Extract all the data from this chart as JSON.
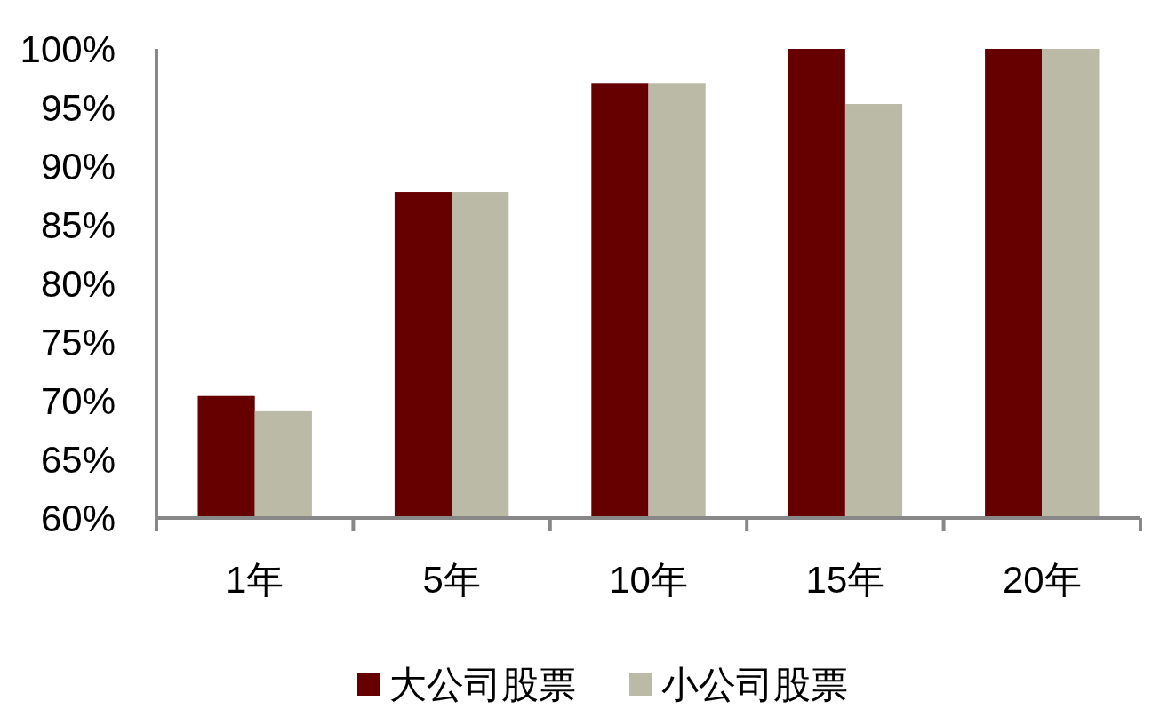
{
  "chart_data": {
    "type": "bar",
    "categories": [
      "1年",
      "5年",
      "10年",
      "15年",
      "20年"
    ],
    "series": [
      {
        "name": "大公司股票",
        "color": "#660000",
        "values": [
          70.4,
          87.8,
          97.1,
          100,
          100
        ]
      },
      {
        "name": "小公司股票",
        "color": "#bbbaa7",
        "values": [
          69.1,
          87.8,
          97.1,
          95.3,
          100
        ]
      }
    ],
    "ylim": [
      60,
      100
    ],
    "yticks": [
      {
        "value": 60,
        "label": "60%"
      },
      {
        "value": 65,
        "label": "65%"
      },
      {
        "value": 70,
        "label": "70%"
      },
      {
        "value": 75,
        "label": "75%"
      },
      {
        "value": 80,
        "label": "80%"
      },
      {
        "value": 85,
        "label": "85%"
      },
      {
        "value": 90,
        "label": "90%"
      },
      {
        "value": 95,
        "label": "95%"
      },
      {
        "value": 100,
        "label": "100%"
      }
    ],
    "grid": false,
    "legend": "bottom"
  }
}
